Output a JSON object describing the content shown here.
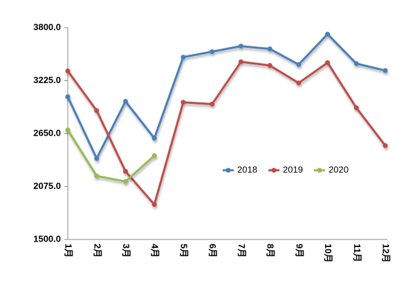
{
  "chart_data": {
    "type": "line",
    "categories": [
      "1月",
      "2月",
      "3月",
      "4月",
      "5月",
      "6月",
      "7月",
      "8月",
      "9月",
      "10月",
      "11月",
      "12月"
    ],
    "series": [
      {
        "name": "2018",
        "color": "#4a7ebb",
        "values": [
          3050,
          2380,
          3000,
          2600,
          3480,
          3540,
          3600,
          3570,
          3400,
          3730,
          3410,
          3335
        ]
      },
      {
        "name": "2019",
        "color": "#be4b48",
        "values": [
          3330,
          2900,
          2240,
          1880,
          2990,
          2970,
          3430,
          3390,
          3200,
          3420,
          2930,
          2520
        ]
      },
      {
        "name": "2020",
        "color": "#98b954",
        "values": [
          2690,
          2190,
          2130,
          2410,
          null,
          null,
          null,
          null,
          null,
          null,
          null,
          null
        ]
      }
    ],
    "ylim": [
      1500,
      3800
    ],
    "yticks": [
      {
        "value": 1500,
        "label": "1500.0"
      },
      {
        "value": 2075,
        "label": "2075.0"
      },
      {
        "value": 2650,
        "label": "2650.0"
      },
      {
        "value": 3225,
        "label": "3225.0"
      },
      {
        "value": 3800,
        "label": "3800.0"
      }
    ],
    "grid": false,
    "legend": "center-right"
  }
}
